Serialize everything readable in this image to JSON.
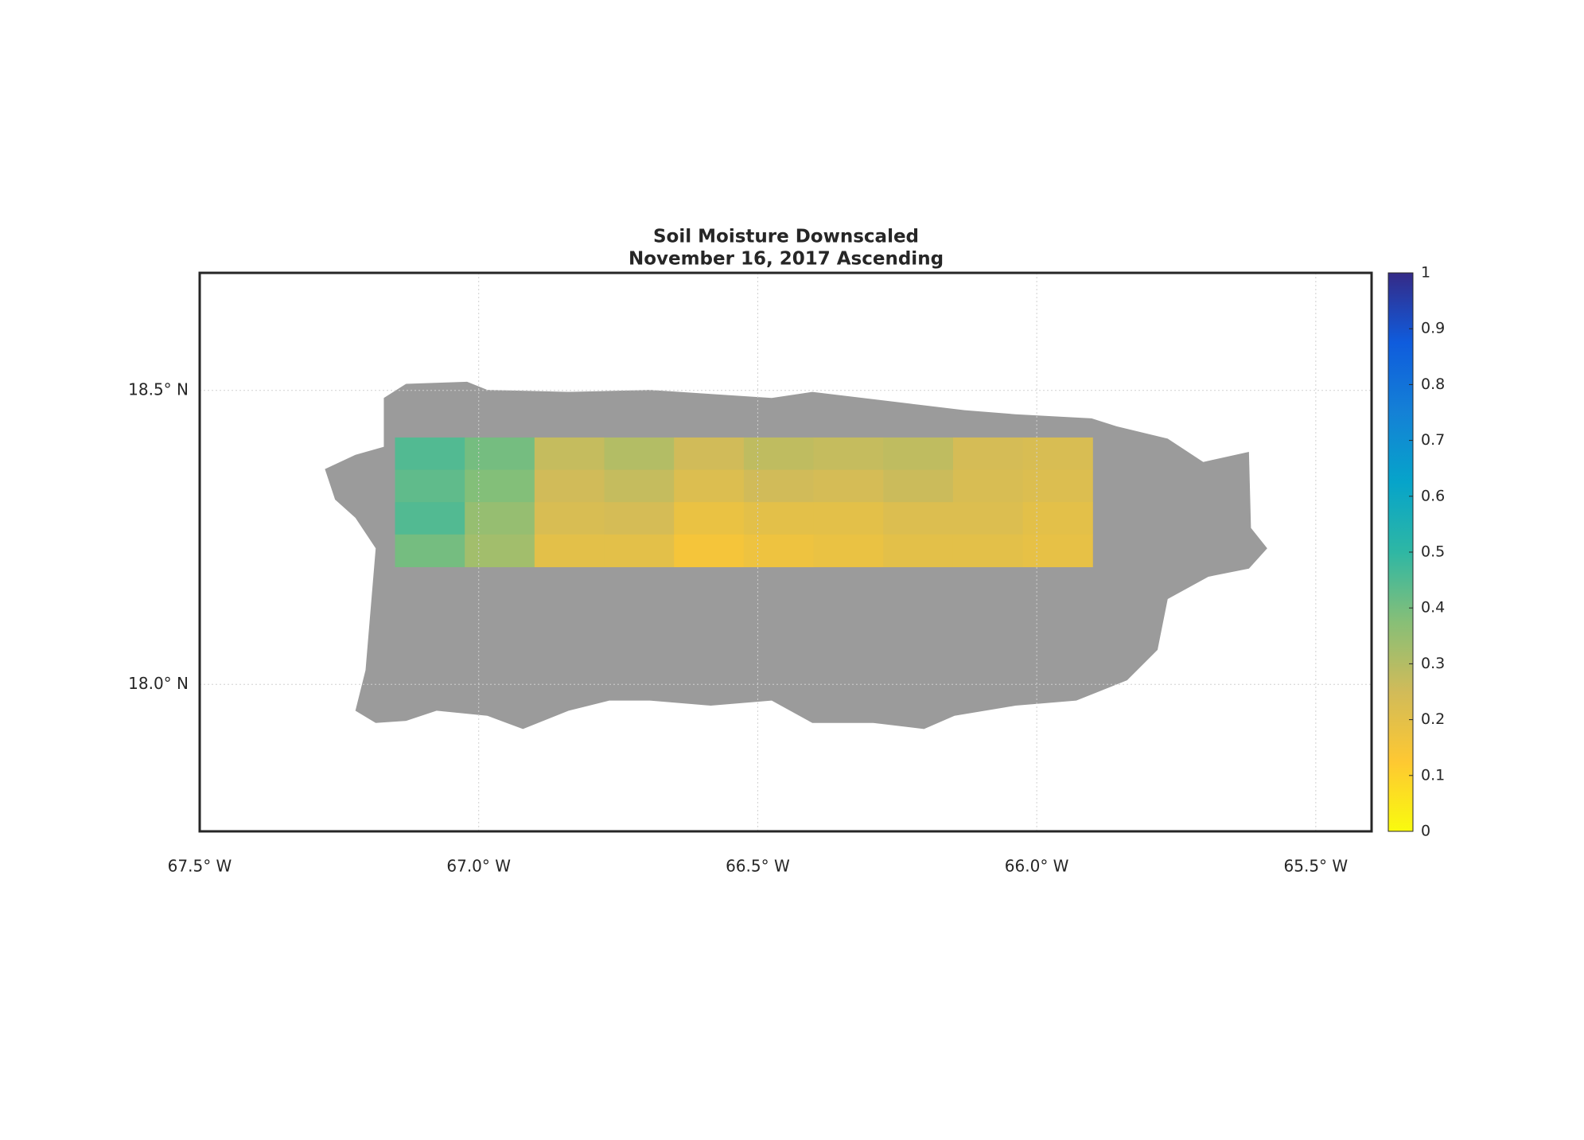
{
  "chart_data": {
    "type": "map",
    "title": [
      "Soil Moisture Downscaled",
      "November 16, 2017 Ascending"
    ],
    "xlim": [
      -67.5,
      -65.4
    ],
    "ylim": [
      17.75,
      18.7
    ],
    "xticks": [
      {
        "value": -67.5,
        "label": "67.5° W"
      },
      {
        "value": -67.0,
        "label": "67.0° W"
      },
      {
        "value": -66.5,
        "label": "66.5° W"
      },
      {
        "value": -66.0,
        "label": "66.0° W"
      },
      {
        "value": -65.5,
        "label": "65.5° W"
      }
    ],
    "yticks": [
      {
        "value": 18.0,
        "label": "18.0° N"
      },
      {
        "value": 18.5,
        "label": "18.5° N"
      }
    ],
    "grid": true,
    "colormap": [
      "#f9fb0e",
      "#fec832",
      "#d1bb59",
      "#87bf77",
      "#2eb7a4",
      "#06a4ca",
      "#1481d6",
      "#0f5cdd",
      "#352a87"
    ],
    "clim": [
      0,
      1
    ],
    "cticks": [
      0,
      0.1,
      0.2,
      0.3,
      0.4,
      0.5,
      0.6,
      0.7,
      0.8,
      0.9,
      1
    ],
    "grid_lon": [
      -67.15,
      -67.025,
      -66.9,
      -66.775,
      -66.65,
      -66.525,
      -66.4,
      -66.275,
      -66.15,
      -66.025,
      -65.9
    ],
    "grid_lat": [
      18.42,
      18.365,
      18.31,
      18.255,
      18.2
    ],
    "values": [
      [
        0.45,
        0.4,
        0.27,
        0.3,
        0.25,
        0.28,
        0.27,
        0.28,
        0.24,
        0.23
      ],
      [
        0.43,
        0.38,
        0.25,
        0.27,
        0.22,
        0.25,
        0.24,
        0.26,
        0.23,
        0.22
      ],
      [
        0.45,
        0.35,
        0.23,
        0.24,
        0.18,
        0.2,
        0.2,
        0.22,
        0.22,
        0.2
      ],
      [
        0.4,
        0.33,
        0.2,
        0.2,
        0.15,
        0.17,
        0.18,
        0.2,
        0.2,
        0.19
      ]
    ]
  }
}
